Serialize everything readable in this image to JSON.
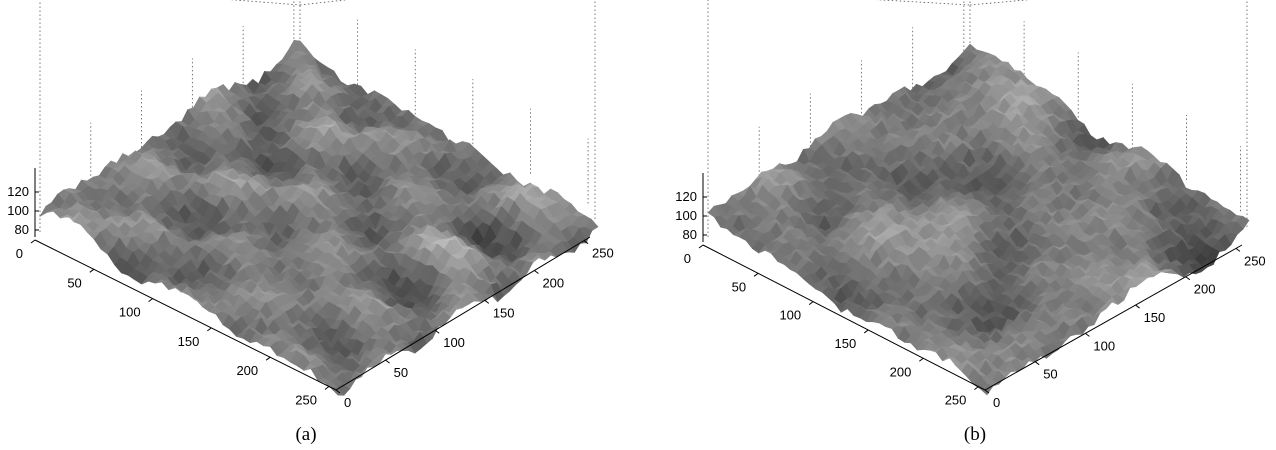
{
  "chart_data": [
    {
      "type": "surface",
      "panel_label": "(a)",
      "x_ticks": [
        0,
        50,
        100,
        150,
        200,
        250
      ],
      "y_ticks": [
        0,
        50,
        100,
        150,
        200,
        250
      ],
      "z_ticks": [
        80,
        100,
        120
      ],
      "xlim": [
        0,
        256
      ],
      "ylim": [
        0,
        256
      ],
      "zlim": [
        70,
        130
      ],
      "grid": true,
      "colormap": "gray"
    },
    {
      "type": "surface",
      "panel_label": "(b)",
      "x_ticks": [
        0,
        50,
        100,
        150,
        200,
        250
      ],
      "y_ticks": [
        0,
        50,
        100,
        150,
        200,
        250
      ],
      "z_ticks": [
        80,
        100,
        120
      ],
      "xlim": [
        0,
        256
      ],
      "ylim": [
        0,
        256
      ],
      "zlim": [
        70,
        130
      ],
      "grid": true,
      "colormap": "gray"
    }
  ]
}
